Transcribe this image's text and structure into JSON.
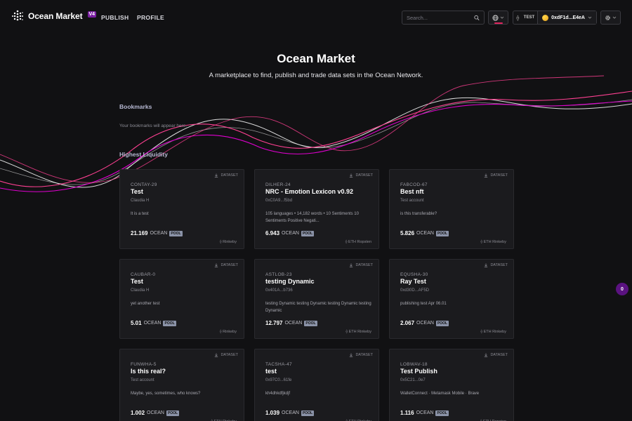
{
  "header": {
    "logo_text": "Ocean Market",
    "logo_badge": "V4",
    "nav": [
      "PUBLISH",
      "PROFILE"
    ],
    "search_placeholder": "Search...",
    "wallet": {
      "network_tag": "TEST",
      "address": "0xdF1d...E4eA"
    }
  },
  "hero": {
    "title": "Ocean Market",
    "subtitle": "A marketplace to find, publish and trade data sets in the Ocean Network."
  },
  "sections": {
    "bookmarks": "Bookmarks",
    "bookmarks_empty": "Your bookmarks will appear here.",
    "highest_liquidity": "Highest Liquidity"
  },
  "cards": [
    {
      "type": "DATASET",
      "symbol": "CONTAY-29",
      "name": "Test",
      "owner": "Claudia H",
      "desc": "It is a test",
      "price": "21.169",
      "currency": "OCEAN",
      "badge": "POOL",
      "network": "Rinkeby"
    },
    {
      "type": "DATASET",
      "symbol": "DILHER-24",
      "name": "NRC - Emotion Lexicon v0.92",
      "owner": "0xC0A9...f5bd",
      "desc": "105 languages • 14,182 words • 10 Sentiments 10 Sentiments Positive Negati...",
      "price": "6.943",
      "currency": "OCEAN",
      "badge": "POOL",
      "network": "ETH Ropsten"
    },
    {
      "type": "DATASET",
      "symbol": "FABCOD-67",
      "name": "Best nft",
      "owner": "Test account",
      "desc": "is this transferable?",
      "price": "5.826",
      "currency": "OCEAN",
      "badge": "POOL",
      "network": "ETH Rinkeby"
    },
    {
      "type": "DATASET",
      "symbol": "CAUBAR-0",
      "name": "Test",
      "owner": "Claudia H",
      "desc": "yet another test",
      "price": "5.01",
      "currency": "OCEAN",
      "badge": "POOL",
      "network": "Rinkeby"
    },
    {
      "type": "DATASET",
      "symbol": "ASTLOB-23",
      "name": "testing Dynamic",
      "owner": "0x401A...b736",
      "desc": "testing Dynamic testing Dynamic testing Dynamic testing Dynamic",
      "price": "12.797",
      "currency": "OCEAN",
      "badge": "POOL",
      "network": "ETH Rinkeby"
    },
    {
      "type": "DATASET",
      "symbol": "EQUSHA-30",
      "name": "Ray Test",
      "owner": "0xd30D...AF5D",
      "desc": "publishing test Apr 06.01",
      "price": "2.067",
      "currency": "OCEAN",
      "badge": "POOL",
      "network": "ETH Rinkeby"
    },
    {
      "type": "DATASET",
      "symbol": "FUNWHA-5",
      "name": "Is this real?",
      "owner": "Test account",
      "desc": "Maybe, yes, sometimes, who knows?",
      "price": "1.002",
      "currency": "OCEAN",
      "badge": "POOL",
      "network": "ETH Rinkeby"
    },
    {
      "type": "DATASET",
      "symbol": "TACSHA-47",
      "name": "test",
      "owner": "0x97C0...61fe",
      "desc": "kh4dhkdfjkdjf",
      "price": "1.039",
      "currency": "OCEAN",
      "badge": "POOL",
      "network": "ETH Rinkeby"
    },
    {
      "type": "DATASET",
      "symbol": "LOBWAV-18",
      "name": "Test Publish",
      "owner": "0x5C21...0e7",
      "desc": "WalletConnect · Metamask Mobile · Brave",
      "price": "1.116",
      "currency": "OCEAN",
      "badge": "POOL",
      "network": "ETH Ropsten"
    }
  ],
  "side_badge": "0",
  "colors": {
    "background": "#111113",
    "card": "#1b1b1e",
    "accent_purple": "#7b1fa2",
    "wave_pink": "#ff4092",
    "wave_magenta": "#e000cf",
    "wave_white": "#ffffff"
  }
}
